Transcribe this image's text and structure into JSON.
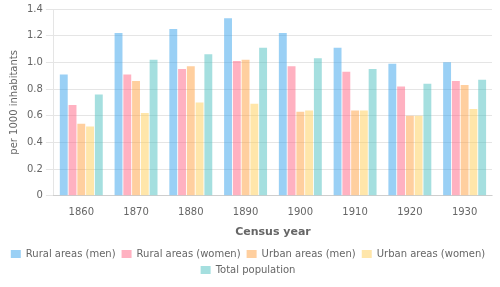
{
  "chart_data": {
    "type": "bar",
    "categories": [
      1860,
      1870,
      1880,
      1890,
      1900,
      1910,
      1920,
      1930
    ],
    "series": [
      {
        "name": "Rural areas (men)",
        "values": [
          0.91,
          1.22,
          1.25,
          1.33,
          1.22,
          1.11,
          0.99,
          1.0
        ]
      },
      {
        "name": "Rural areas (women)",
        "values": [
          0.68,
          0.91,
          0.95,
          1.01,
          0.97,
          0.93,
          0.82,
          0.86
        ]
      },
      {
        "name": "Urban areas (men)",
        "values": [
          0.54,
          0.86,
          0.97,
          1.02,
          0.63,
          0.64,
          0.6,
          0.83
        ]
      },
      {
        "name": "Urban areas (women)",
        "values": [
          0.52,
          0.62,
          0.7,
          0.69,
          0.64,
          0.64,
          0.6,
          0.65
        ]
      },
      {
        "name": "Total population",
        "values": [
          0.76,
          1.02,
          1.06,
          1.11,
          1.03,
          0.95,
          0.84,
          0.87
        ]
      }
    ],
    "xlabel": "Census year",
    "ylabel": "per 1000 inhabitants",
    "ylim": [
      0,
      1.4
    ],
    "yticks": [
      0,
      0.2,
      0.4,
      0.6,
      0.8,
      {
        "value": 1.0,
        "label": "1.0"
      },
      1.2,
      1.4
    ],
    "grid": true,
    "legend": "bottom"
  }
}
